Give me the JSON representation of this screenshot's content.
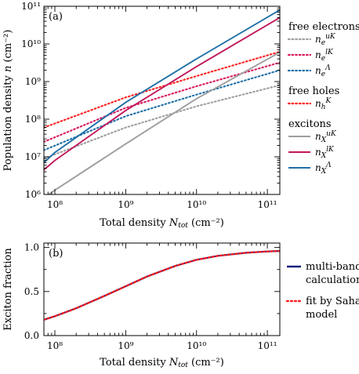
{
  "chart_data": [
    {
      "panel": "(a)",
      "type": "line",
      "xlabel": "Total density N_tot (cm⁻²)",
      "ylabel": "Population density n (cm⁻²)",
      "x_scale": "log",
      "y_scale": "log",
      "xlim": [
        70000000.0,
        150000000000.0
      ],
      "ylim": [
        1000000.0,
        100000000000.0
      ],
      "x_ticks": [
        {
          "value": 100000000.0,
          "label": "10⁸"
        },
        {
          "value": 1000000000.0,
          "label": "10⁹"
        },
        {
          "value": 10000000000.0,
          "label": "10¹⁰"
        },
        {
          "value": 100000000000.0,
          "label": "10¹¹"
        }
      ],
      "y_ticks": [
        {
          "value": 1000000.0,
          "label": "10⁶"
        },
        {
          "value": 10000000.0,
          "label": "10⁷"
        },
        {
          "value": 100000000.0,
          "label": "10⁸"
        },
        {
          "value": 1000000000.0,
          "label": "10⁹"
        },
        {
          "value": 10000000000.0,
          "label": "10¹⁰"
        },
        {
          "value": 100000000000.0,
          "label": "10¹¹"
        }
      ],
      "legend_groups": [
        {
          "title": "free electrons",
          "items": [
            "n_e^uK",
            "n_e^lK",
            "n_e^Λ"
          ]
        },
        {
          "title": "free holes",
          "items": [
            "n_h^K"
          ]
        },
        {
          "title": "excitons",
          "items": [
            "n_X^uK",
            "n_X^lK",
            "n_X^Λ"
          ]
        }
      ],
      "legend_placement": "right-outside",
      "series": [
        {
          "name": "n_e^uK",
          "color": "#9e9e9e",
          "dash": "dotted",
          "x": [
            70000000.0,
            1000000000.0,
            10000000000.0,
            150000000000.0
          ],
          "y": [
            9000000.0,
            60000000.0,
            220000000.0,
            800000000.0
          ]
        },
        {
          "name": "n_e^lK",
          "color": "#d81b60",
          "dash": "dotted",
          "x": [
            70000000.0,
            1000000000.0,
            10000000000.0,
            150000000000.0
          ],
          "y": [
            25000000.0,
            200000000.0,
            750000000.0,
            3200000000.0
          ]
        },
        {
          "name": "n_e^Λ",
          "color": "#1f6fa8",
          "dash": "dotted",
          "x": [
            70000000.0,
            1000000000.0,
            10000000000.0,
            150000000000.0
          ],
          "y": [
            15000000.0,
            120000000.0,
            450000000.0,
            2000000000.0
          ]
        },
        {
          "name": "n_h^K",
          "color": "#ff1f1f",
          "dash": "dotted",
          "x": [
            70000000.0,
            1000000000.0,
            10000000000.0,
            150000000000.0
          ],
          "y": [
            60000000.0,
            380000000.0,
            1400000000.0,
            6200000000.0
          ]
        },
        {
          "name": "n_X^uK",
          "color": "#9e9e9e",
          "dash": "solid",
          "x": [
            70000000.0,
            100000000.0,
            1000000000.0,
            10000000000.0,
            150000000000.0
          ],
          "y": [
            800000.0,
            1300000.0,
            22000000.0,
            350000000.0,
            6000000000.0
          ]
        },
        {
          "name": "n_X^lK",
          "color": "#c2185b",
          "dash": "solid",
          "x": [
            70000000.0,
            100000000.0,
            1000000000.0,
            10000000000.0,
            150000000000.0
          ],
          "y": [
            4500000.0,
            8000000.0,
            170000000.0,
            2500000000.0,
            50000000000.0
          ]
        },
        {
          "name": "n_X^Λ",
          "color": "#1f6fa8",
          "dash": "solid",
          "x": [
            70000000.0,
            100000000.0,
            1000000000.0,
            10000000000.0,
            150000000000.0
          ],
          "y": [
            7000000.0,
            13000000.0,
            280000000.0,
            4000000000.0,
            80000000000.0
          ]
        }
      ],
      "grid": false
    },
    {
      "panel": "(b)",
      "type": "line",
      "xlabel": "Total density N_tot (cm⁻²)",
      "ylabel": "Exciton fraction",
      "x_scale": "log",
      "xlim": [
        70000000.0,
        150000000000.0
      ],
      "ylim": [
        0.0,
        1.05
      ],
      "x_ticks": [
        {
          "value": 100000000.0,
          "label": "10⁸"
        },
        {
          "value": 1000000000.0,
          "label": "10⁹"
        },
        {
          "value": 10000000000.0,
          "label": "10¹⁰"
        },
        {
          "value": 100000000000.0,
          "label": "10¹¹"
        }
      ],
      "y_ticks": [
        {
          "value": 0.0,
          "label": "0.0"
        },
        {
          "value": 0.5,
          "label": "0.5"
        },
        {
          "value": 1.0,
          "label": "1.0"
        }
      ],
      "legend": [
        {
          "name": "multi-band calculation",
          "lines": [
            "multi-band",
            "calculation"
          ],
          "color": "#1a237e",
          "dash": "solid"
        },
        {
          "name": "fit by Saha model",
          "lines": [
            "fit by Saha",
            "model"
          ],
          "color": "#ff1a1a",
          "dash": "dotted"
        }
      ],
      "legend_placement": "right-outside",
      "series": [
        {
          "name": "multi-band calculation",
          "color": "#1a237e",
          "dash": "solid",
          "x": [
            70000000.0,
            100000000.0,
            200000000.0,
            500000000.0,
            1000000000.0,
            2000000000.0,
            5000000000.0,
            10000000000.0,
            20000000000.0,
            50000000000.0,
            100000000000.0,
            150000000000.0
          ],
          "y": [
            0.18,
            0.22,
            0.31,
            0.45,
            0.56,
            0.67,
            0.79,
            0.86,
            0.905,
            0.94,
            0.955,
            0.96
          ]
        },
        {
          "name": "fit by Saha model",
          "color": "#ff1a1a",
          "dash": "dotted",
          "x": [
            70000000.0,
            100000000.0,
            200000000.0,
            500000000.0,
            1000000000.0,
            2000000000.0,
            5000000000.0,
            10000000000.0,
            20000000000.0,
            50000000000.0,
            100000000000.0,
            150000000000.0
          ],
          "y": [
            0.18,
            0.22,
            0.31,
            0.45,
            0.56,
            0.67,
            0.79,
            0.86,
            0.905,
            0.94,
            0.955,
            0.96
          ]
        }
      ],
      "grid": false
    }
  ]
}
